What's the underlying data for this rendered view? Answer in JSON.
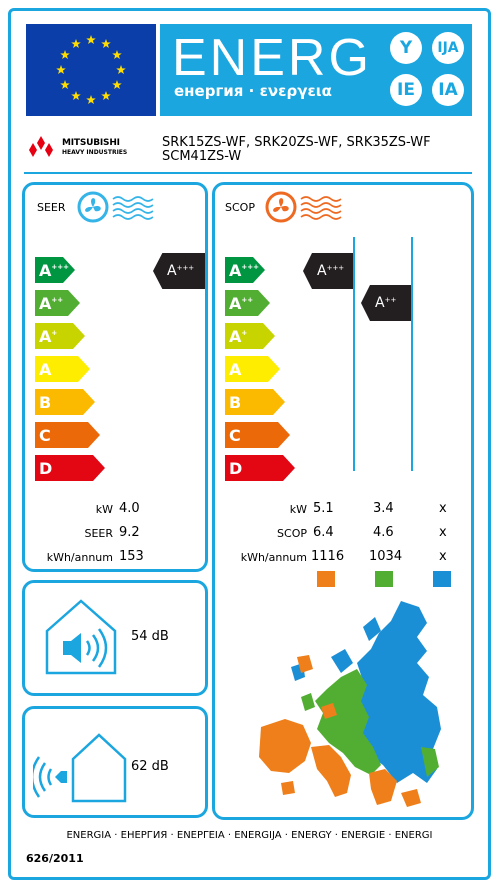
{
  "header": {
    "energy_word": "ENERG",
    "energy_sub": "енергия · ενεργεια",
    "lang_circles": [
      "Y",
      "IJA",
      "IE",
      "IA"
    ]
  },
  "brand": {
    "name": "MITSUBISHI",
    "sub": "HEAVY INDUSTRIES"
  },
  "models": {
    "line1": "SRK15ZS-WF, SRK20ZS-WF, SRK35ZS-WF",
    "line2": "SCM41ZS-W"
  },
  "cooling": {
    "label": "SEER",
    "scale": [
      {
        "class": "A",
        "sup": "+++",
        "color": "#009641"
      },
      {
        "class": "A",
        "sup": "++",
        "color": "#52ae32"
      },
      {
        "class": "A",
        "sup": "+",
        "color": "#c8d400"
      },
      {
        "class": "A",
        "sup": "",
        "color": "#ffed00"
      },
      {
        "class": "B",
        "sup": "",
        "color": "#fbba00"
      },
      {
        "class": "C",
        "sup": "",
        "color": "#eb6909"
      },
      {
        "class": "D",
        "sup": "",
        "color": "#e30613"
      }
    ],
    "rating": {
      "class": "A",
      "sup": "+++"
    },
    "rows": [
      {
        "label": "kW",
        "value": "4.0"
      },
      {
        "label": "SEER",
        "value": "9.2"
      },
      {
        "label": "kWh/annum",
        "value": "153"
      }
    ]
  },
  "heating": {
    "label": "SCOP",
    "ratings": [
      {
        "class": "A",
        "sup": "+++"
      },
      {
        "class": "A",
        "sup": "++"
      }
    ],
    "rows": [
      {
        "label": "kW",
        "values": [
          "5.1",
          "3.4",
          "x"
        ]
      },
      {
        "label": "SCOP",
        "values": [
          "6.4",
          "4.6",
          "x"
        ]
      },
      {
        "label": "kWh/annum",
        "values": [
          "1116",
          "1034",
          "x"
        ]
      }
    ],
    "zone_colors": [
      "#ee7f1a",
      "#52ae32",
      "#1b8fd6"
    ]
  },
  "noise": {
    "indoor": "54 dB",
    "outdoor": "62 dB"
  },
  "footer": {
    "languages": "ENERGIA · ЕНЕРГИЯ · ΕΝΕΡΓΕΙΑ · ENERGIJA · ENERGY · ENERGIE · ENERGI",
    "regulation": "626/2011"
  },
  "colors": {
    "frame": "#1ba6df",
    "eu_blue": "#0b3ea8",
    "eu_star": "#ffdd00",
    "rating_black": "#231f20"
  }
}
